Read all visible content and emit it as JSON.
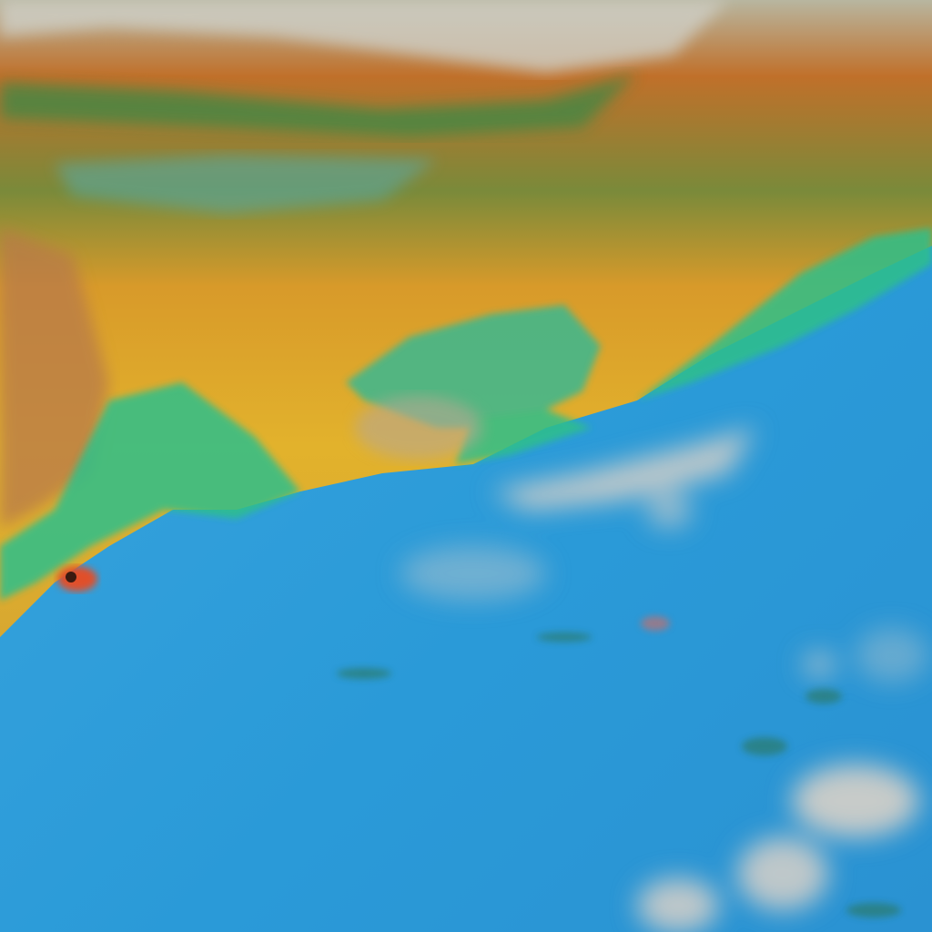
{
  "image": {
    "kind": "false-color satellite imagery",
    "colors": {
      "ocean": "#2a9ad8",
      "ocean_light": "#4fb0e6",
      "haze_land": "#e0b22a",
      "land_orange": "#c9782e",
      "vegetation_fringe": "#2fbf8a",
      "cloud": "#d8d0c8",
      "hotspot": "#e0502a"
    }
  }
}
